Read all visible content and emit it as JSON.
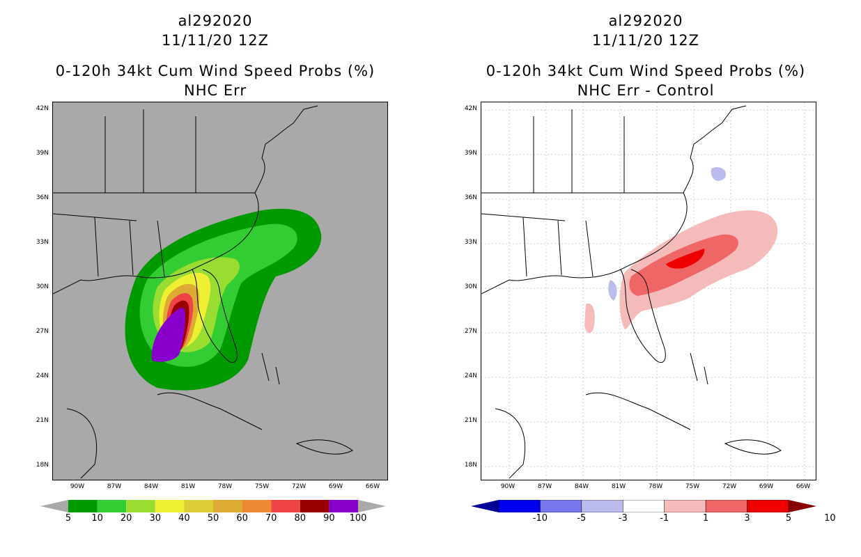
{
  "panels": [
    {
      "storm_id": "al292020",
      "date": "11/11/20 12Z",
      "product": "0-120h 34kt Cum Wind Speed Probs (%)",
      "subtitle": "NHC Err",
      "background": "#a9a9a9",
      "colorbar_labels": [
        "5",
        "10",
        "20",
        "30",
        "40",
        "50",
        "60",
        "70",
        "80",
        "90",
        "100"
      ],
      "colorbar_colors": [
        "#009900",
        "#33cc33",
        "#99dd33",
        "#eeee33",
        "#ddcc33",
        "#ddaa33",
        "#ee8833",
        "#ee4444",
        "#990000",
        "#8800cc"
      ]
    },
    {
      "storm_id": "al292020",
      "date": "11/11/20 12Z",
      "product": "0-120h 34kt Cum Wind Speed Probs (%)",
      "subtitle": "NHC Err - Control",
      "background": "#ffffff",
      "colorbar_labels": [
        "-10",
        "-5",
        "-3",
        "-1",
        "1",
        "3",
        "5",
        "10"
      ],
      "colorbar_colors": [
        "#000099",
        "#0000ee",
        "#7777ee",
        "#bbbbee",
        "#ffffff",
        "#f5bbbb",
        "#ee6666",
        "#ee0000",
        "#880000"
      ]
    }
  ],
  "axes": {
    "lat_labels": [
      "42N",
      "39N",
      "36N",
      "33N",
      "30N",
      "27N",
      "24N",
      "21N",
      "18N"
    ],
    "lon_labels": [
      "90W",
      "87W",
      "84W",
      "81W",
      "78W",
      "75W",
      "72W",
      "69W",
      "66W"
    ]
  }
}
